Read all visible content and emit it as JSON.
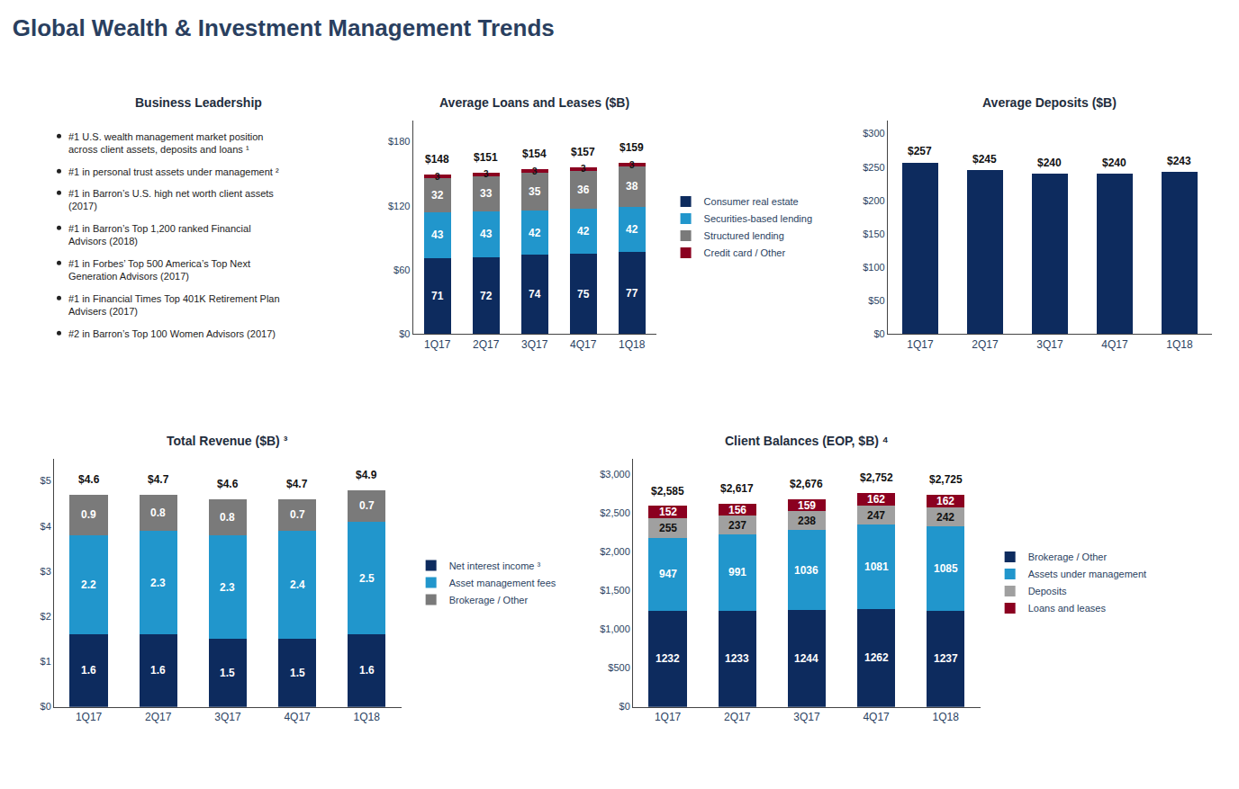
{
  "title": "Global Wealth & Investment Management Trends",
  "chart_data": [
    {
      "type": "text",
      "title": "Business Leadership",
      "annotations": [
        "#1 U.S. wealth management market position\nacross client assets, deposits and loans ¹",
        "#1 in personal trust assets under management ²",
        "#1 in Barron’s U.S. high net worth client assets\n(2017)",
        "#1 in Barron’s Top 1,200 ranked Financial\nAdvisors (2018)",
        "#1 in Forbes’ Top 500 America’s Top Next\nGeneration Advisors (2017)",
        "#1 in Financial Times Top 401K Retirement Plan\nAdvisers (2017)",
        "#2 in Barron’s Top 100 Women Advisors (2017)"
      ]
    },
    {
      "type": "bar",
      "title": "Average Loans and Leases ($B)",
      "categories": [
        "1Q17",
        "2Q17",
        "3Q17",
        "4Q17",
        "1Q18"
      ],
      "series": [
        {
          "name": "Consumer real estate",
          "color": "#0D2B5E",
          "values": [
            71,
            72,
            74,
            75,
            77
          ]
        },
        {
          "name": "Securities-based lending",
          "color": "#2196CC",
          "values": [
            43,
            43,
            42,
            42,
            42
          ]
        },
        {
          "name": "Structured lending",
          "color": "#7A7A7A",
          "values": [
            32,
            33,
            35,
            36,
            38
          ]
        },
        {
          "name": "Credit card / Other",
          "color": "#8B0020",
          "values": [
            3,
            3,
            3,
            3,
            3
          ]
        }
      ],
      "totals": [
        148,
        151,
        154,
        157,
        159
      ],
      "total_labels": [
        "$148",
        "$151",
        "$154",
        "$157",
        "$159"
      ],
      "stacked": true,
      "data_labels": true,
      "legend": "right",
      "grid": false,
      "ylim": [
        0,
        200
      ],
      "yticks": [
        {
          "value": 0,
          "label": "$0"
        },
        {
          "value": 60,
          "label": "$60"
        },
        {
          "value": 120,
          "label": "$120"
        },
        {
          "value": 180,
          "label": "$180"
        }
      ]
    },
    {
      "type": "bar",
      "title": "Average Deposits ($B)",
      "categories": [
        "1Q17",
        "2Q17",
        "3Q17",
        "4Q17",
        "1Q18"
      ],
      "values": [
        257,
        245,
        240,
        240,
        243
      ],
      "value_labels": [
        "$257",
        "$245",
        "$240",
        "$240",
        "$243"
      ],
      "color": "#0D2B5E",
      "data_labels": true,
      "grid": false,
      "ylim": [
        0,
        320
      ],
      "yticks": [
        {
          "value": 0,
          "label": "$0"
        },
        {
          "value": 50,
          "label": "$50"
        },
        {
          "value": 100,
          "label": "$100"
        },
        {
          "value": 150,
          "label": "$150"
        },
        {
          "value": 200,
          "label": "$200"
        },
        {
          "value": 250,
          "label": "$250"
        },
        {
          "value": 300,
          "label": "$300"
        }
      ]
    },
    {
      "type": "bar",
      "title": "Total Revenue ($B) ³",
      "categories": [
        "1Q17",
        "2Q17",
        "3Q17",
        "4Q17",
        "1Q18"
      ],
      "series": [
        {
          "name": "Net interest income ³",
          "color": "#0D2B5E",
          "values": [
            1.6,
            1.6,
            1.5,
            1.5,
            1.6
          ]
        },
        {
          "name": "Asset management fees",
          "color": "#2196CC",
          "values": [
            2.2,
            2.3,
            2.3,
            2.4,
            2.5
          ]
        },
        {
          "name": "Brokerage / Other",
          "color": "#7A7A7A",
          "values": [
            0.9,
            0.8,
            0.8,
            0.7,
            0.7
          ]
        }
      ],
      "totals": [
        4.6,
        4.7,
        4.6,
        4.7,
        4.9
      ],
      "total_labels": [
        "$4.6",
        "$4.7",
        "$4.6",
        "$4.7",
        "$4.9"
      ],
      "stacked": true,
      "data_labels": true,
      "legend": "right",
      "grid": false,
      "ylim": [
        0,
        5.5
      ],
      "yticks": [
        {
          "value": 0,
          "label": "$0"
        },
        {
          "value": 1,
          "label": "$1"
        },
        {
          "value": 2,
          "label": "$2"
        },
        {
          "value": 3,
          "label": "$3"
        },
        {
          "value": 4,
          "label": "$4"
        },
        {
          "value": 5,
          "label": "$5"
        }
      ]
    },
    {
      "type": "bar",
      "title": "Client Balances (EOP, $B) ⁴",
      "categories": [
        "1Q17",
        "2Q17",
        "3Q17",
        "4Q17",
        "1Q18"
      ],
      "series": [
        {
          "name": "Brokerage / Other",
          "color": "#0D2B5E",
          "values": [
            1232,
            1233,
            1244,
            1262,
            1237
          ]
        },
        {
          "name": "Assets under management",
          "color": "#2196CC",
          "values": [
            947,
            991,
            1036,
            1081,
            1085
          ]
        },
        {
          "name": "Deposits",
          "color": "#A0A0A0",
          "values": [
            255,
            237,
            238,
            247,
            242
          ]
        },
        {
          "name": "Loans and leases",
          "color": "#8B0020",
          "values": [
            152,
            156,
            159,
            162,
            162
          ]
        }
      ],
      "totals": [
        2585,
        2617,
        2676,
        2752,
        2725
      ],
      "total_labels": [
        "$2,585",
        "$2,617",
        "$2,676",
        "$2,752",
        "$2,725"
      ],
      "stacked": true,
      "data_labels": true,
      "legend": "right",
      "grid": false,
      "ylim": [
        0,
        3200
      ],
      "yticks": [
        {
          "value": 0,
          "label": "$0"
        },
        {
          "value": 500,
          "label": "$500"
        },
        {
          "value": 1000,
          "label": "$1,000"
        },
        {
          "value": 1500,
          "label": "$1,500"
        },
        {
          "value": 2000,
          "label": "$2,000"
        },
        {
          "value": 2500,
          "label": "$2,500"
        },
        {
          "value": 3000,
          "label": "$3,000"
        }
      ]
    }
  ]
}
